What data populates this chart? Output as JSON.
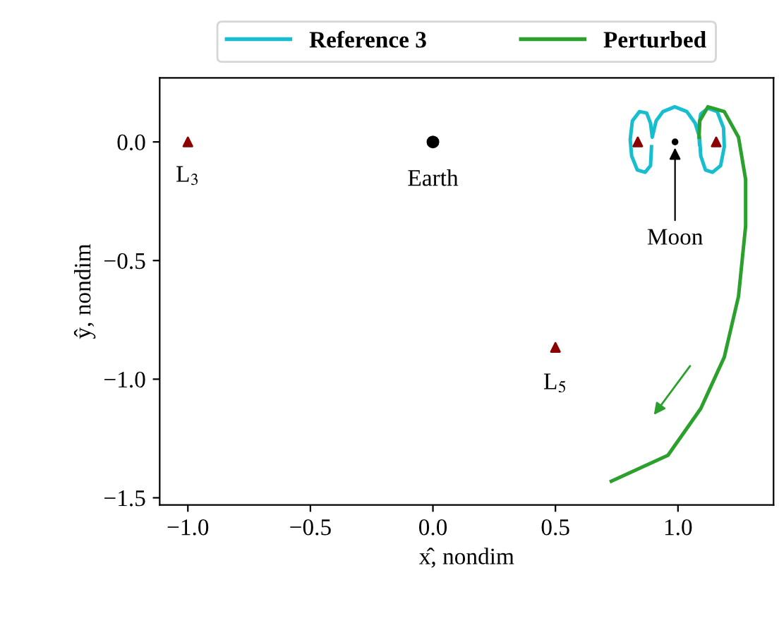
{
  "chart_data": {
    "type": "line",
    "xlabel": "x̂, nondim",
    "ylabel": "ŷ, nondim",
    "xlim": [
      -1.115,
      1.39
    ],
    "ylim": [
      -1.53,
      0.27
    ],
    "xticks": [
      {
        "value": -1.0,
        "label": "−1.0"
      },
      {
        "value": -0.5,
        "label": "−0.5"
      },
      {
        "value": 0.0,
        "label": "0.0"
      },
      {
        "value": 0.5,
        "label": "0.5"
      },
      {
        "value": 1.0,
        "label": "1.0"
      }
    ],
    "yticks": [
      {
        "value": 0.0,
        "label": "0.0"
      },
      {
        "value": -0.5,
        "label": "−0.5"
      },
      {
        "value": -1.0,
        "label": "−1.0"
      },
      {
        "value": -1.5,
        "label": "−1.5"
      }
    ],
    "grid": false,
    "legend": "top",
    "series": [
      {
        "name": "Reference 3",
        "color": "#17becf",
        "x": [
          0.892,
          0.888,
          0.866,
          0.834,
          0.811,
          0.805,
          0.814,
          0.843,
          0.872,
          0.888,
          0.895,
          0.911,
          0.939,
          0.987,
          1.036,
          1.07,
          1.088,
          1.093,
          1.112,
          1.141,
          1.174,
          1.189,
          1.186,
          1.16,
          1.122,
          1.093,
          1.084,
          1.088
        ],
        "values": [
          -0.02,
          -0.1,
          -0.128,
          -0.118,
          -0.059,
          0.01,
          0.089,
          0.128,
          0.122,
          0.079,
          0.02,
          0.089,
          0.128,
          0.148,
          0.128,
          0.079,
          0.02,
          -0.059,
          -0.118,
          -0.128,
          -0.1,
          -0.02,
          0.059,
          0.128,
          0.142,
          0.118,
          0.059,
          -0.01
        ]
      },
      {
        "name": "Perturbed",
        "color": "#2ca02c",
        "x": [
          1.086,
          1.089,
          1.122,
          1.189,
          1.247,
          1.276,
          1.276,
          1.247,
          1.189,
          1.093,
          0.959,
          0.728
        ],
        "values": [
          0.02,
          0.089,
          0.148,
          0.128,
          0.02,
          -0.158,
          -0.355,
          -0.651,
          -0.907,
          -1.124,
          -1.321,
          -1.43
        ]
      },
      {
        "type": "scatter",
        "marker": "triangle",
        "color": "#8b0000",
        "x": [
          -1.0,
          0.836,
          1.156,
          0.5
        ],
        "values": [
          0.0,
          0.0,
          0.0,
          -0.866
        ]
      },
      {
        "type": "scatter",
        "marker": "circle",
        "color": "#000000",
        "x": [
          0.0
        ],
        "values": [
          0.0
        ]
      },
      {
        "type": "scatter",
        "marker": "circle",
        "color": "#000000",
        "x": [
          0.988
        ],
        "values": [
          0.0
        ]
      }
    ],
    "annotations": [
      {
        "text": "L$_{3}$",
        "x": -1.0,
        "y": 0.0
      },
      {
        "text": "Earth",
        "x": 0.0,
        "y": 0.0
      },
      {
        "text": "Moon",
        "x": 0.988,
        "y": 0.0
      },
      {
        "text": "L$_{5}$",
        "x": 0.5,
        "y": -0.866
      }
    ]
  }
}
